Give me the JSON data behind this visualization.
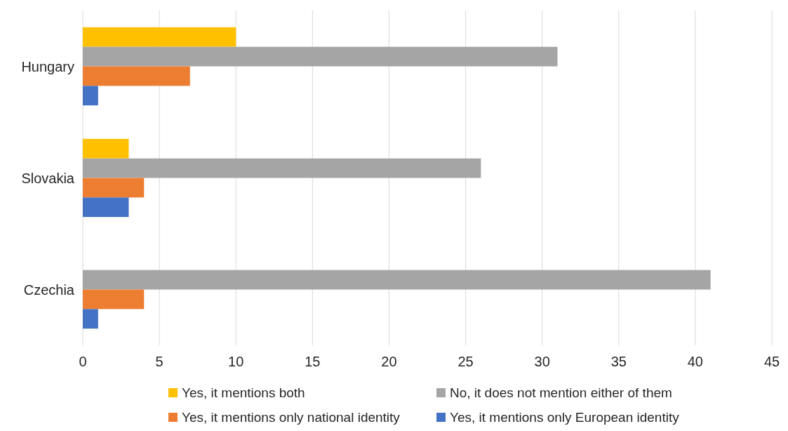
{
  "chart_data": {
    "type": "bar",
    "orientation": "horizontal",
    "categories": [
      "Hungary",
      "Slovakia",
      "Czechia"
    ],
    "series": [
      {
        "name": "Yes, it mentions both",
        "color": "#ffc000",
        "values": [
          10,
          3,
          0
        ]
      },
      {
        "name": "No, it does not mention either of them",
        "color": "#a5a5a5",
        "values": [
          31,
          26,
          41
        ]
      },
      {
        "name": "Yes, it mentions only national identity",
        "color": "#ed7d31",
        "values": [
          7,
          4,
          4
        ]
      },
      {
        "name": "Yes, it mentions only European identity",
        "color": "#4472c4",
        "values": [
          1,
          3,
          1
        ]
      }
    ],
    "xlim": [
      0,
      45
    ],
    "xticks": [
      0,
      5,
      10,
      15,
      20,
      25,
      30,
      35,
      40,
      45
    ],
    "grid": "x",
    "legend": "bottom"
  }
}
